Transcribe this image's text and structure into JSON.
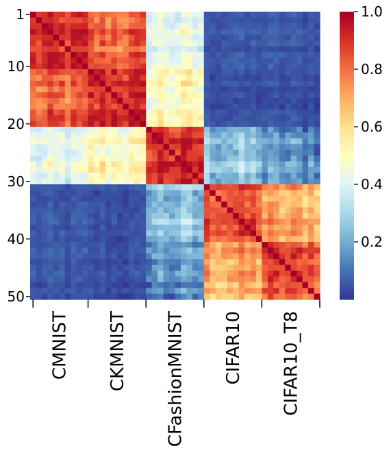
{
  "chart_data": {
    "type": "heatmap",
    "title": "",
    "xlabel": "",
    "ylabel": "",
    "matrix_size": 50,
    "groups": [
      {
        "label": "CMNIST",
        "start": 1,
        "end": 10
      },
      {
        "label": "CKMNIST",
        "start": 11,
        "end": 20
      },
      {
        "label": "CFashionMNIST",
        "start": 21,
        "end": 30
      },
      {
        "label": "CIFAR10",
        "start": 31,
        "end": 40
      },
      {
        "label": "CIFAR10_T8",
        "start": 41,
        "end": 50
      }
    ],
    "block_similarity": [
      [
        0.87,
        0.8,
        0.4,
        0.05,
        0.05
      ],
      [
        0.8,
        0.9,
        0.5,
        0.04,
        0.04
      ],
      [
        0.4,
        0.5,
        0.9,
        0.25,
        0.15
      ],
      [
        0.05,
        0.04,
        0.25,
        0.85,
        0.7
      ],
      [
        0.05,
        0.04,
        0.15,
        0.7,
        0.85
      ]
    ],
    "diagonal_value": 1.0,
    "y_ticks": [
      {
        "pos": 1,
        "label": "1"
      },
      {
        "pos": 10,
        "label": "10"
      },
      {
        "pos": 20,
        "label": "20"
      },
      {
        "pos": 30,
        "label": "30"
      },
      {
        "pos": 40,
        "label": "40"
      },
      {
        "pos": 50,
        "label": "50"
      }
    ],
    "colorbar": {
      "colormap": "RdYlBu_r",
      "range": [
        0.0,
        1.0
      ],
      "ticks": [
        {
          "value": 0.2,
          "label": "0.2"
        },
        {
          "value": 0.4,
          "label": "0.4"
        },
        {
          "value": 0.6,
          "label": "0.6"
        },
        {
          "value": 0.8,
          "label": "0.8"
        },
        {
          "value": 1.0,
          "label": "1.0"
        }
      ]
    },
    "colors": [
      "#313695",
      "#4575b4",
      "#74add1",
      "#abd9e9",
      "#e0f3f8",
      "#ffffbf",
      "#fee090",
      "#fdae61",
      "#f46d43",
      "#d73027",
      "#a50026"
    ]
  }
}
